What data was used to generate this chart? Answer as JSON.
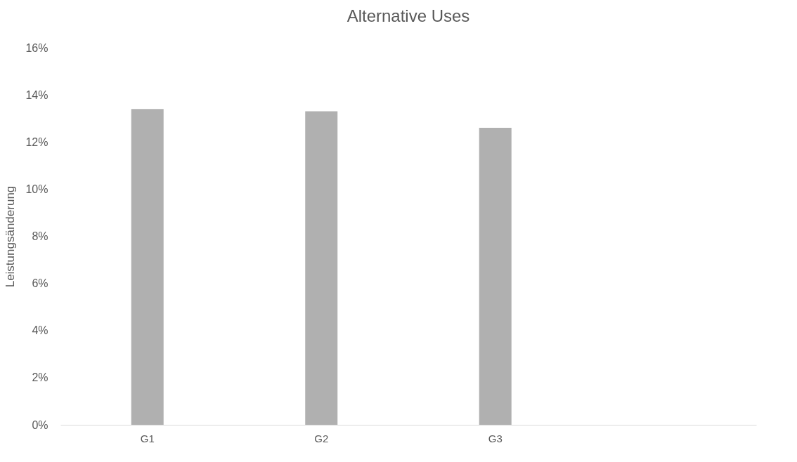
{
  "chart_data": {
    "type": "bar",
    "title": "Alternative Uses",
    "ylabel": "Leistungsänderung",
    "categories": [
      "G1",
      "G2",
      "G3",
      null
    ],
    "values": [
      13.4,
      13.3,
      12.6,
      null
    ],
    "color": "#b0b0b0",
    "ylim": [
      0,
      16
    ],
    "yticks": [
      {
        "value": 0,
        "label": "0%"
      },
      {
        "value": 2,
        "label": "2%"
      },
      {
        "value": 4,
        "label": "4%"
      },
      {
        "value": 6,
        "label": "6%"
      },
      {
        "value": 8,
        "label": "8%"
      },
      {
        "value": 10,
        "label": "10%"
      },
      {
        "value": 12,
        "label": "12%"
      },
      {
        "value": 14,
        "label": "14%"
      },
      {
        "value": 16,
        "label": "16%"
      }
    ],
    "grid": false
  }
}
